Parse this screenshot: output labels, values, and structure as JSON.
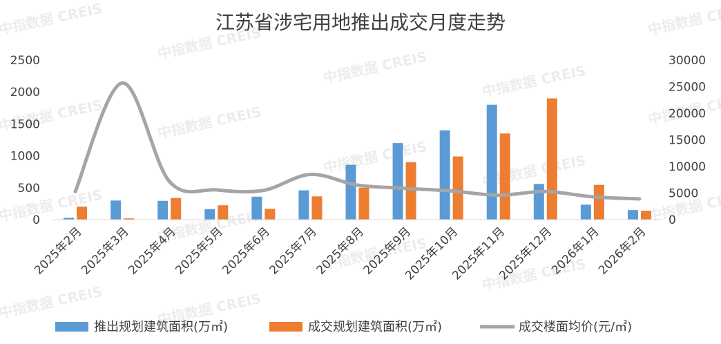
{
  "chart_data": {
    "type": "bar",
    "title": "江苏省涉宅用地推出成交月度走势",
    "categories": [
      "2025年2月",
      "2025年3月",
      "2025年4月",
      "2025年5月",
      "2025年6月",
      "2025年7月",
      "2025年8月",
      "2025年9月",
      "2025年10月",
      "2025年11月",
      "2025年12月",
      "2026年1月",
      "2026年2月"
    ],
    "series": [
      {
        "name": "推出规划建筑面积(万㎡)",
        "kind": "bar",
        "axis": "left",
        "color": "#5B9BD5",
        "values": [
          30,
          300,
          295,
          165,
          360,
          460,
          860,
          1200,
          1400,
          1800,
          560,
          235,
          150
        ]
      },
      {
        "name": "成交规划建筑面积(万㎡)",
        "kind": "bar",
        "axis": "left",
        "color": "#ED7D31",
        "values": [
          205,
          20,
          340,
          225,
          170,
          365,
          500,
          900,
          990,
          1350,
          1900,
          545,
          140
        ]
      },
      {
        "name": "成交楼面均价(元/㎡)",
        "kind": "line",
        "axis": "right",
        "color": "#A5A5A5",
        "values": [
          5300,
          25700,
          7200,
          5600,
          5500,
          8500,
          6500,
          5900,
          5400,
          4600,
          5300,
          4300,
          3900
        ]
      }
    ],
    "y_left": {
      "min": 0,
      "max": 2500,
      "ticks": [
        0,
        500,
        1000,
        1500,
        2000,
        2500
      ]
    },
    "y_right": {
      "min": 0,
      "max": 30000,
      "ticks": [
        0,
        5000,
        10000,
        15000,
        20000,
        25000,
        30000
      ]
    },
    "legend_position": "bottom",
    "grid": false
  },
  "watermark": "中指数据 CREIS"
}
